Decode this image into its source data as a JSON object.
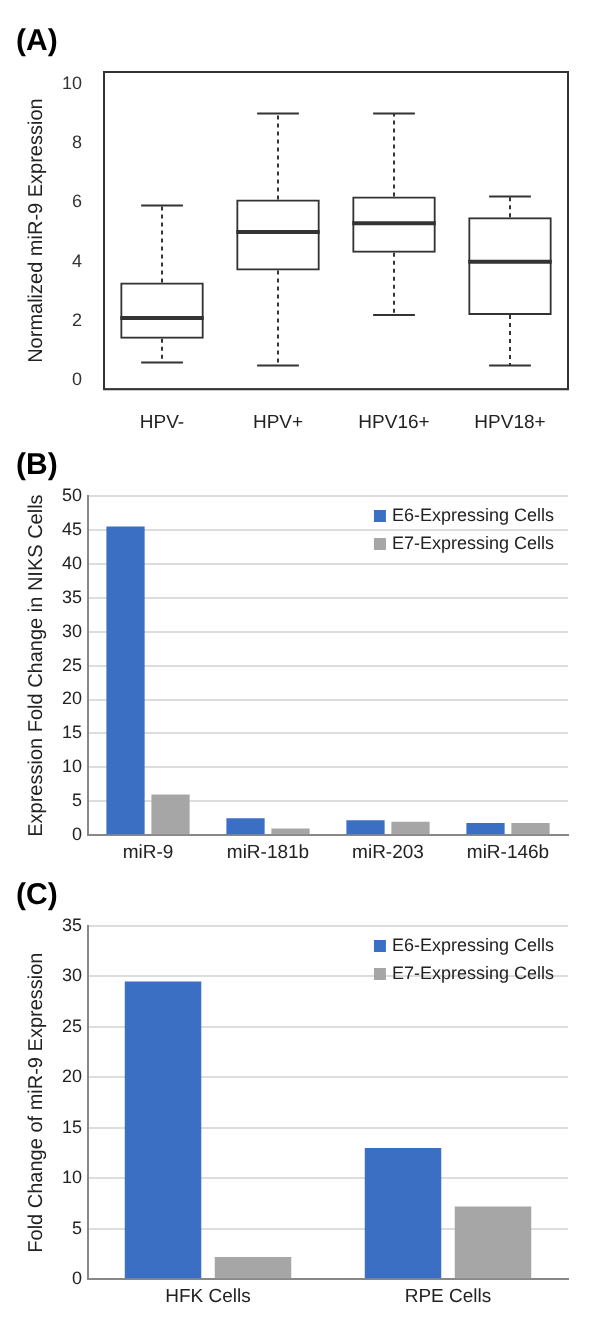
{
  "chart_data": [
    {
      "type": "box",
      "title": "(A)",
      "ylabel": "Normalized miR-9 Expression",
      "categories": [
        "HPV-",
        "HPV+",
        "HPV16+",
        "HPV18+"
      ],
      "boxes": [
        {
          "low": 0.6,
          "q1": 1.4,
          "median": 2.1,
          "q3": 3.3,
          "high": 5.9
        },
        {
          "low": 0.5,
          "q1": 3.7,
          "median": 5.0,
          "q3": 6.1,
          "high": 9.0
        },
        {
          "low": 2.2,
          "q1": 4.3,
          "median": 5.3,
          "q3": 6.2,
          "high": 9.0
        },
        {
          "low": 0.5,
          "q1": 2.2,
          "median": 4.0,
          "q3": 5.5,
          "high": 6.2
        }
      ],
      "ylim": [
        -0.3,
        10.4
      ],
      "yticks": [
        0,
        2,
        4,
        6,
        8,
        10
      ],
      "grid": false
    },
    {
      "type": "bar",
      "title": "(B)",
      "ylabel": "Expression Fold Change in NIKS Cells",
      "categories": [
        "miR-9",
        "miR-181b",
        "miR-203",
        "miR-146b"
      ],
      "series": [
        {
          "name": "E6-Expressing Cells",
          "color": "#3a6fc4",
          "values": [
            45.5,
            2.5,
            2.2,
            1.8
          ]
        },
        {
          "name": "E7-Expressing Cells",
          "color": "#a6a6a6",
          "values": [
            6,
            1,
            2,
            1.8
          ]
        }
      ],
      "ylim": [
        0,
        50
      ],
      "yticks": [
        0,
        5,
        10,
        15,
        20,
        25,
        30,
        35,
        40,
        45,
        50
      ],
      "grid": "y",
      "legend": "top right"
    },
    {
      "type": "bar",
      "title": "(C)",
      "ylabel": "Fold Change of miR-9 Expression",
      "categories": [
        "HFK Cells",
        "RPE Cells"
      ],
      "series": [
        {
          "name": "E6-Expressing Cells",
          "color": "#3a6fc4",
          "values": [
            29.5,
            13
          ]
        },
        {
          "name": "E7-Expressing Cells",
          "color": "#a6a6a6",
          "values": [
            2.2,
            7.2
          ]
        }
      ],
      "ylim": [
        0,
        35
      ],
      "yticks": [
        0,
        5,
        10,
        15,
        20,
        25,
        30,
        35
      ],
      "grid": "y",
      "legend": "top right"
    }
  ]
}
